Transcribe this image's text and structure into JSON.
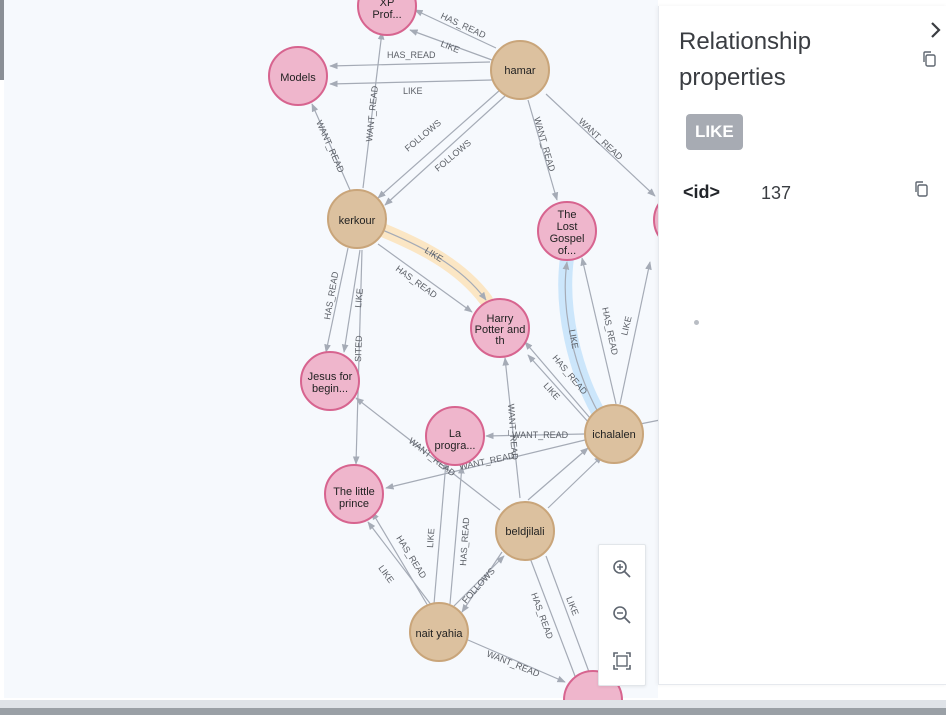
{
  "graph": {
    "nodes": {
      "xp": [
        "XP",
        "Prof..."
      ],
      "models": [
        "Models"
      ],
      "hamar": [
        "hamar"
      ],
      "kerkour": [
        "kerkour"
      ],
      "lost_gospel": [
        "The",
        "Lost",
        "Gospel",
        "of..."
      ],
      "harry_potter": [
        "Harry",
        "Potter and",
        "th"
      ],
      "jesus": [
        "Jesus for",
        "begin..."
      ],
      "la_progra": [
        "La",
        "progra..."
      ],
      "little_prince": [
        "The little",
        "prince"
      ],
      "ichalalen": [
        "ichalalen"
      ],
      "beldjilali": [
        "beldjilali"
      ],
      "nait_yahia": [
        "nait yahia"
      ]
    },
    "edge_labels": {
      "has_read": "HAS_READ",
      "like": "LIKE",
      "want_read": "WANT_READ",
      "follows": "FOLLOWS",
      "visited": "SITED"
    }
  },
  "zoom": {
    "zoom_in_icon": "zoom-in-icon",
    "zoom_out_icon": "zoom-out-icon",
    "fit_icon": "fit-screen-icon"
  },
  "panel": {
    "title": "Relationship properties",
    "relationship_type": "LIKE",
    "properties": [
      {
        "key": "<id>",
        "value": "137"
      }
    ]
  },
  "colors": {
    "person": "#dcc19f",
    "book": "#efb6cc",
    "edge": "#a5abb6",
    "highlight_blue": "#cce6fb",
    "highlight_orange": "#fbe6c4"
  }
}
